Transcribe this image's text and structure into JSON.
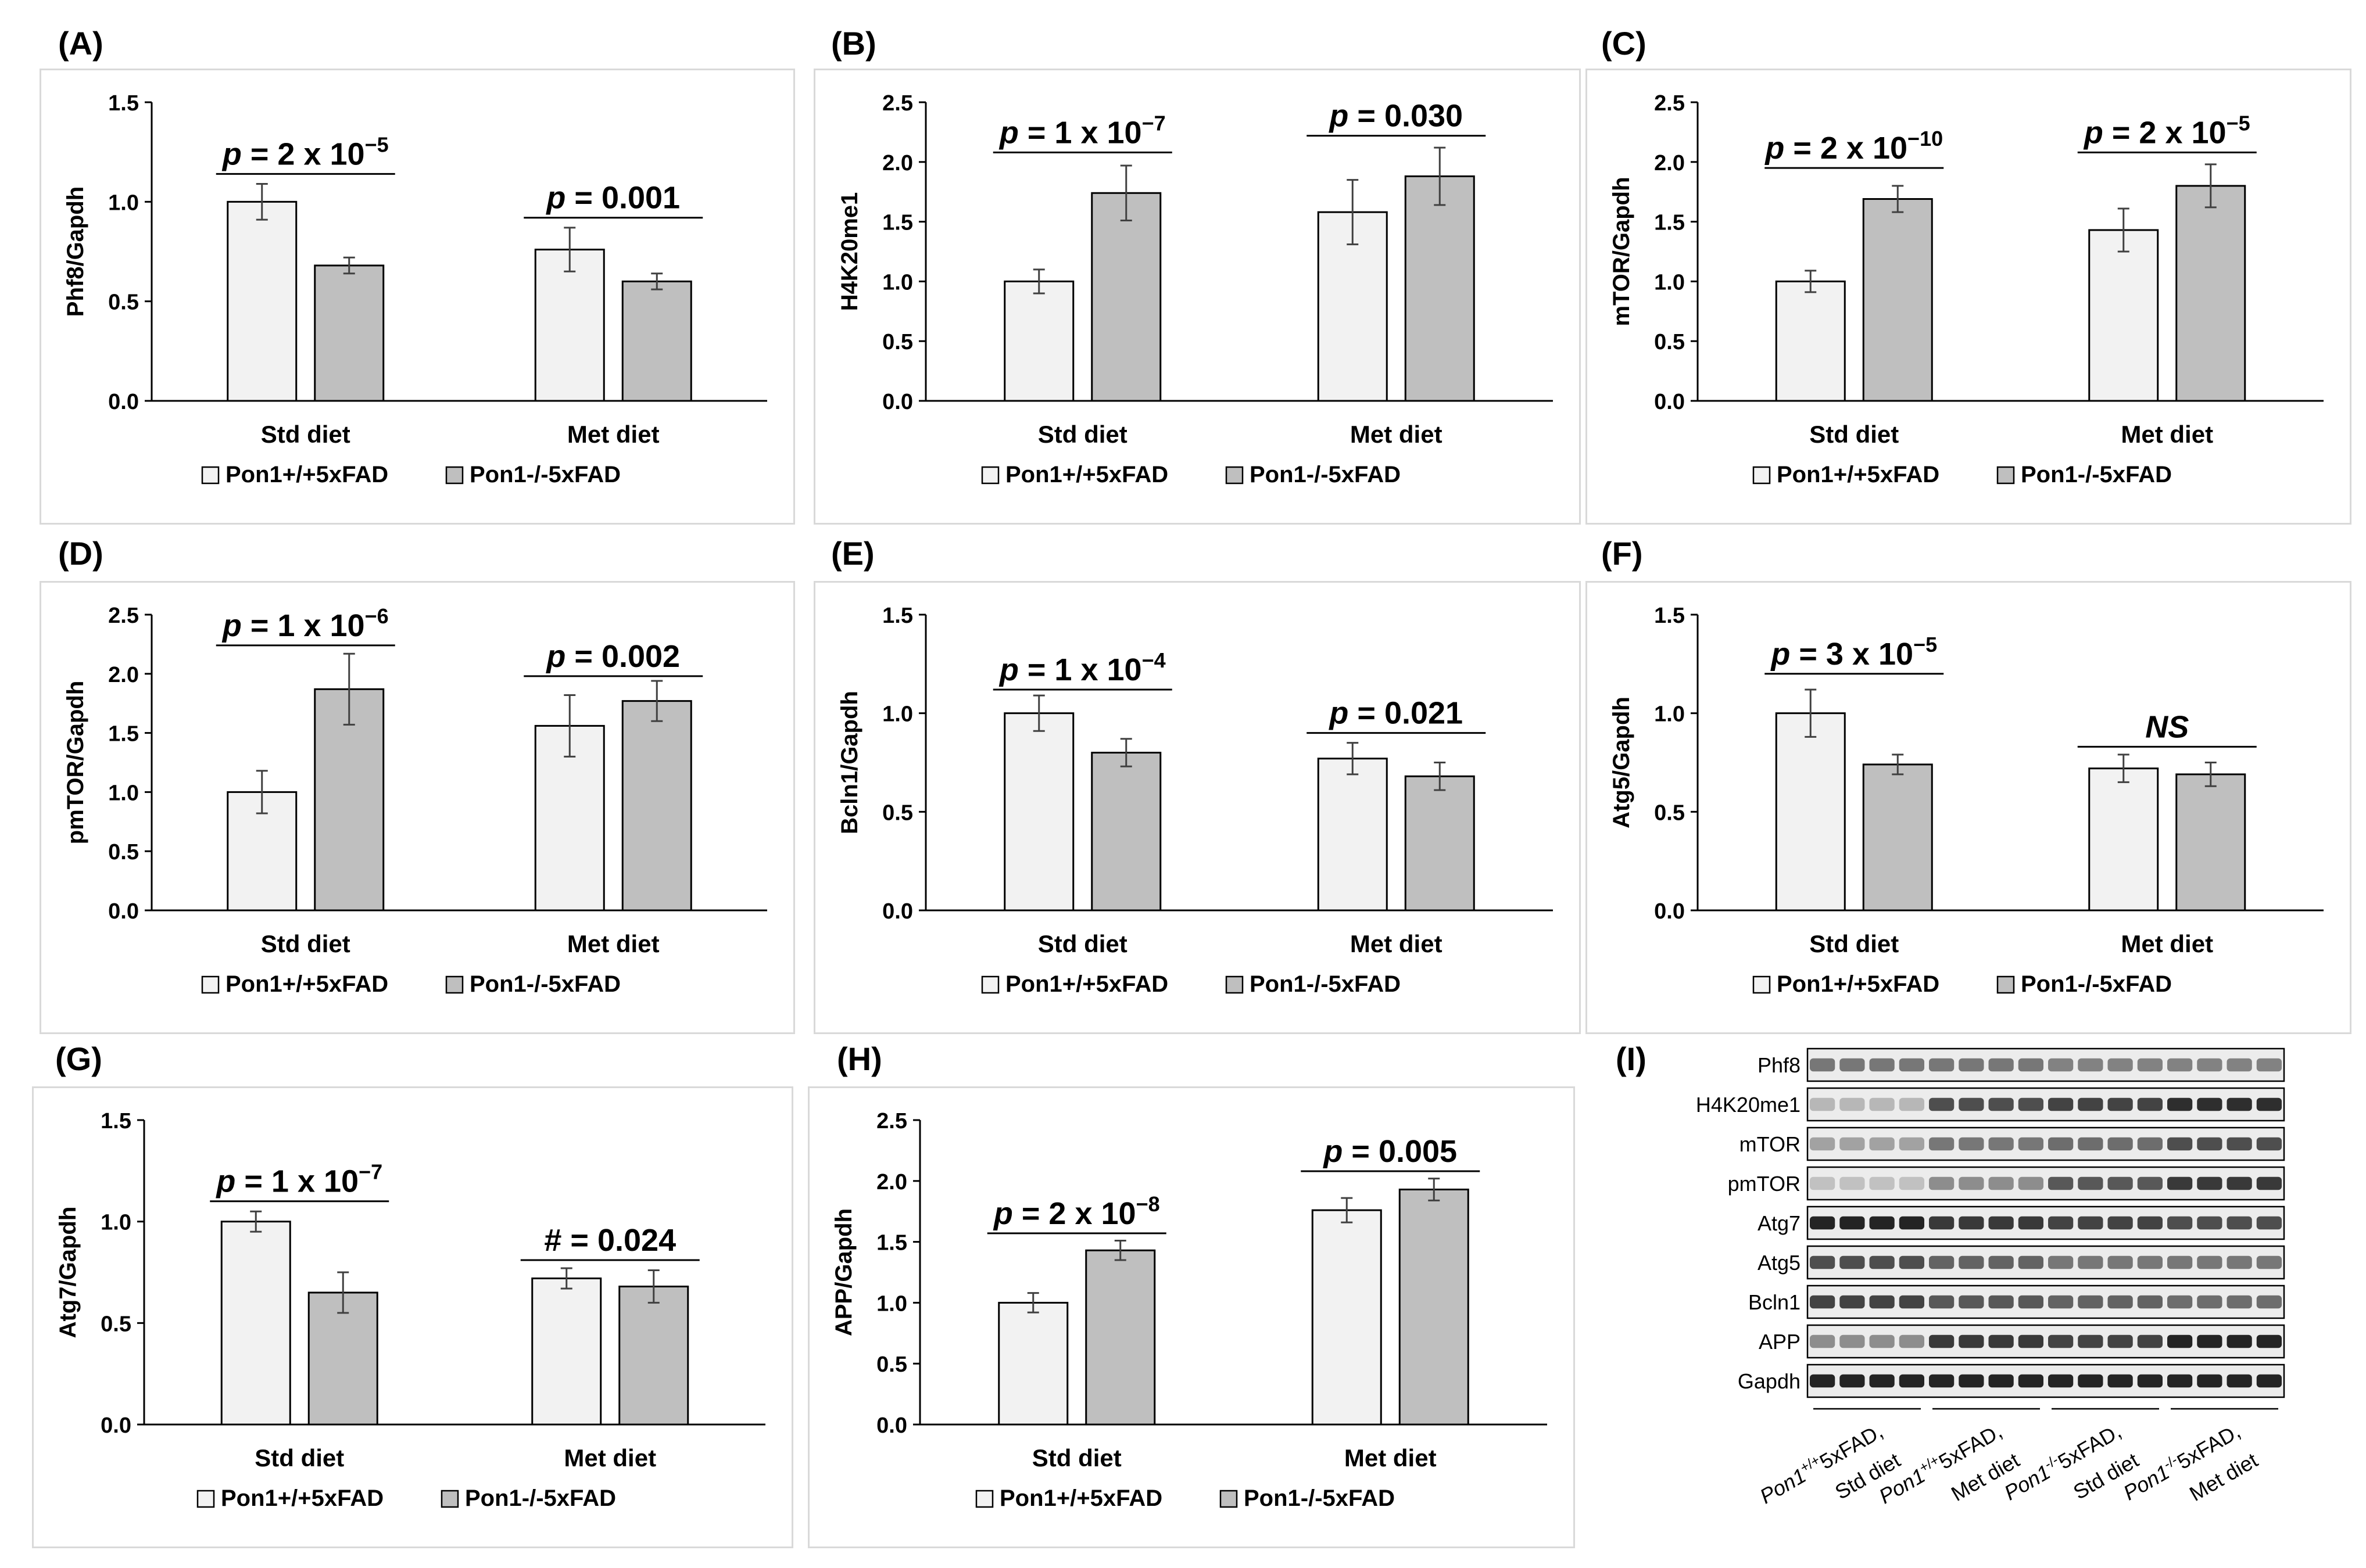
{
  "legend_labels": [
    "Pon1+/+5xFAD",
    "Pon1-/-5xFAD"
  ],
  "colors": {
    "wt_bar": "#f2f2f2",
    "ko_bar": "#bfbfbf",
    "stroke": "#000000",
    "error": "#404040",
    "box_border": "#d9d9d9"
  },
  "chart_data": [
    {
      "panel": "(A)",
      "type": "bar",
      "ylabel": "Phf8/Gapdh",
      "ylim": [
        0,
        1.5
      ],
      "yticks": [
        "0.0",
        "0.5",
        "1.0",
        "1.5"
      ],
      "ytick_values": [
        0,
        0.5,
        1.0,
        1.5
      ],
      "categories": [
        "Std diet",
        "Met diet"
      ],
      "series": [
        {
          "name": "Pon1+/+5xFAD",
          "values": [
            1.0,
            0.76
          ],
          "errors": [
            0.09,
            0.11
          ]
        },
        {
          "name": "Pon1-/-5xFAD",
          "values": [
            0.68,
            0.6
          ],
          "errors": [
            0.04,
            0.04
          ]
        }
      ],
      "annotations": [
        {
          "prefix": "p",
          "text": " = 2 x 10",
          "sup": "−5",
          "y": 1.14
        },
        {
          "prefix": "p",
          "text": " = 0.001",
          "sup": "",
          "y": 0.92
        }
      ]
    },
    {
      "panel": "(B)",
      "type": "bar",
      "ylabel": "H4K20me1",
      "ylim": [
        0,
        2.5
      ],
      "yticks": [
        "0.0",
        "0.5",
        "1.0",
        "1.5",
        "2.0",
        "2.5"
      ],
      "ytick_values": [
        0,
        0.5,
        1.0,
        1.5,
        2.0,
        2.5
      ],
      "categories": [
        "Std diet",
        "Met diet"
      ],
      "series": [
        {
          "name": "Pon1+/+5xFAD",
          "values": [
            1.0,
            1.58
          ],
          "errors": [
            0.1,
            0.27
          ]
        },
        {
          "name": "Pon1-/-5xFAD",
          "values": [
            1.74,
            1.88
          ],
          "errors": [
            0.23,
            0.24
          ]
        }
      ],
      "annotations": [
        {
          "prefix": "p",
          "text": " = 1 x 10",
          "sup": "−7",
          "y": 2.08
        },
        {
          "prefix": "p",
          "text": " = 0.030",
          "sup": "",
          "y": 2.22
        }
      ]
    },
    {
      "panel": "(C)",
      "type": "bar",
      "ylabel": "mTOR/Gapdh",
      "ylim": [
        0,
        2.5
      ],
      "yticks": [
        "0.0",
        "0.5",
        "1.0",
        "1.5",
        "2.0",
        "2.5"
      ],
      "ytick_values": [
        0,
        0.5,
        1.0,
        1.5,
        2.0,
        2.5
      ],
      "categories": [
        "Std diet",
        "Met diet"
      ],
      "series": [
        {
          "name": "Pon1+/+5xFAD",
          "values": [
            1.0,
            1.43
          ],
          "errors": [
            0.09,
            0.18
          ]
        },
        {
          "name": "Pon1-/-5xFAD",
          "values": [
            1.69,
            1.8
          ],
          "errors": [
            0.11,
            0.18
          ]
        }
      ],
      "annotations": [
        {
          "prefix": "p",
          "text": " = 2 x 10",
          "sup": "−10",
          "y": 1.95
        },
        {
          "prefix": "p",
          "text": " = 2 x 10",
          "sup": "−5",
          "y": 2.08
        }
      ]
    },
    {
      "panel": "(D)",
      "type": "bar",
      "ylabel": "pmTOR/Gapdh",
      "ylim": [
        0,
        2.5
      ],
      "yticks": [
        "0.0",
        "0.5",
        "1.0",
        "1.5",
        "2.0",
        "2.5"
      ],
      "ytick_values": [
        0,
        0.5,
        1.0,
        1.5,
        2.0,
        2.5
      ],
      "categories": [
        "Std diet",
        "Met diet"
      ],
      "series": [
        {
          "name": "Pon1+/+5xFAD",
          "values": [
            1.0,
            1.56
          ],
          "errors": [
            0.18,
            0.26
          ]
        },
        {
          "name": "Pon1-/-5xFAD",
          "values": [
            1.87,
            1.77
          ],
          "errors": [
            0.3,
            0.17
          ]
        }
      ],
      "annotations": [
        {
          "prefix": "p",
          "text": " = 1 x 10",
          "sup": "−6",
          "y": 2.24
        },
        {
          "prefix": "p",
          "text": " = 0.002",
          "sup": "",
          "y": 1.98
        }
      ]
    },
    {
      "panel": "(E)",
      "type": "bar",
      "ylabel": "Bcln1/Gapdh",
      "ylim": [
        0,
        1.5
      ],
      "yticks": [
        "0.0",
        "0.5",
        "1.0",
        "1.5"
      ],
      "ytick_values": [
        0,
        0.5,
        1.0,
        1.5
      ],
      "categories": [
        "Std diet",
        "Met diet"
      ],
      "series": [
        {
          "name": "Pon1+/+5xFAD",
          "values": [
            1.0,
            0.77
          ],
          "errors": [
            0.09,
            0.08
          ]
        },
        {
          "name": "Pon1-/-5xFAD",
          "values": [
            0.8,
            0.68
          ],
          "errors": [
            0.07,
            0.07
          ]
        }
      ],
      "annotations": [
        {
          "prefix": "p",
          "text": " = 1 x 10",
          "sup": "−4",
          "y": 1.12
        },
        {
          "prefix": "p",
          "text": " = 0.021",
          "sup": "",
          "y": 0.9
        }
      ]
    },
    {
      "panel": "(F)",
      "type": "bar",
      "ylabel": "Atg5/Gapdh",
      "ylim": [
        0,
        1.5
      ],
      "yticks": [
        "0.0",
        "0.5",
        "1.0",
        "1.5"
      ],
      "ytick_values": [
        0,
        0.5,
        1.0,
        1.5
      ],
      "categories": [
        "Std diet",
        "Met diet"
      ],
      "series": [
        {
          "name": "Pon1+/+5xFAD",
          "values": [
            1.0,
            0.72
          ],
          "errors": [
            0.12,
            0.07
          ]
        },
        {
          "name": "Pon1-/-5xFAD",
          "values": [
            0.74,
            0.69
          ],
          "errors": [
            0.05,
            0.06
          ]
        }
      ],
      "annotations": [
        {
          "prefix": "p",
          "text": " = 3 x 10",
          "sup": "−5",
          "y": 1.2
        },
        {
          "prefix": "",
          "text": "NS",
          "sup": "",
          "y": 0.83,
          "italic": true
        }
      ]
    },
    {
      "panel": "(G)",
      "type": "bar",
      "ylabel": "Atg7/Gapdh",
      "ylim": [
        0,
        1.5
      ],
      "yticks": [
        "0.0",
        "0.5",
        "1.0",
        "1.5"
      ],
      "ytick_values": [
        0,
        0.5,
        1.0,
        1.5
      ],
      "categories": [
        "Std diet",
        "Met diet"
      ],
      "series": [
        {
          "name": "Pon1+/+5xFAD",
          "values": [
            1.0,
            0.72
          ],
          "errors": [
            0.05,
            0.05
          ]
        },
        {
          "name": "Pon1-/-5xFAD",
          "values": [
            0.65,
            0.68
          ],
          "errors": [
            0.1,
            0.08
          ]
        }
      ],
      "annotations": [
        {
          "prefix": "p",
          "text": " = 1 x 10",
          "sup": "−7",
          "y": 1.1
        },
        {
          "prefix": "#",
          "text": " = 0.024",
          "sup": "",
          "y": 0.81
        }
      ]
    },
    {
      "panel": "(H)",
      "type": "bar",
      "ylabel": "APP/Gapdh",
      "ylim": [
        0,
        2.5
      ],
      "yticks": [
        "0.0",
        "0.5",
        "1.0",
        "1.5",
        "2.0",
        "2.5"
      ],
      "ytick_values": [
        0,
        0.5,
        1.0,
        1.5,
        2.0,
        2.5
      ],
      "categories": [
        "Std diet",
        "Met diet"
      ],
      "series": [
        {
          "name": "Pon1+/+5xFAD",
          "values": [
            1.0,
            1.76
          ],
          "errors": [
            0.08,
            0.1
          ]
        },
        {
          "name": "Pon1-/-5xFAD",
          "values": [
            1.43,
            1.93
          ],
          "errors": [
            0.08,
            0.09
          ]
        }
      ],
      "annotations": [
        {
          "prefix": "p",
          "text": " = 2 x 10",
          "sup": "−8",
          "y": 1.57
        },
        {
          "prefix": "p",
          "text": " = 0.005",
          "sup": "",
          "y": 2.08
        }
      ]
    }
  ],
  "blot": {
    "panel": "(I)",
    "rows": [
      "Phf8",
      "H4K20me1",
      "mTOR",
      "pmTOR",
      "Atg7",
      "Atg5",
      "Bcln1",
      "APP",
      "Gapdh"
    ],
    "row_intensity": [
      [
        0.55,
        0.55,
        0.5,
        0.5
      ],
      [
        0.25,
        0.75,
        0.8,
        0.9
      ],
      [
        0.35,
        0.55,
        0.6,
        0.75
      ],
      [
        0.2,
        0.45,
        0.7,
        0.85
      ],
      [
        0.95,
        0.85,
        0.8,
        0.75
      ],
      [
        0.75,
        0.65,
        0.55,
        0.55
      ],
      [
        0.8,
        0.7,
        0.65,
        0.6
      ],
      [
        0.45,
        0.85,
        0.8,
        0.95
      ],
      [
        0.95,
        0.95,
        0.95,
        0.95
      ]
    ],
    "groups": [
      {
        "italic": "Pon1",
        "sup": "+/+",
        "rest": "5xFAD,",
        "line2": "Std diet"
      },
      {
        "italic": "Pon1",
        "sup": "+/+",
        "rest": "5xFAD,",
        "line2": "Met diet"
      },
      {
        "italic": "Pon1",
        "sup": "-/-",
        "rest": "5xFAD,",
        "line2": "Std diet"
      },
      {
        "italic": "Pon1",
        "sup": "-/-",
        "rest": "5xFAD,",
        "line2": "Met diet"
      }
    ]
  }
}
